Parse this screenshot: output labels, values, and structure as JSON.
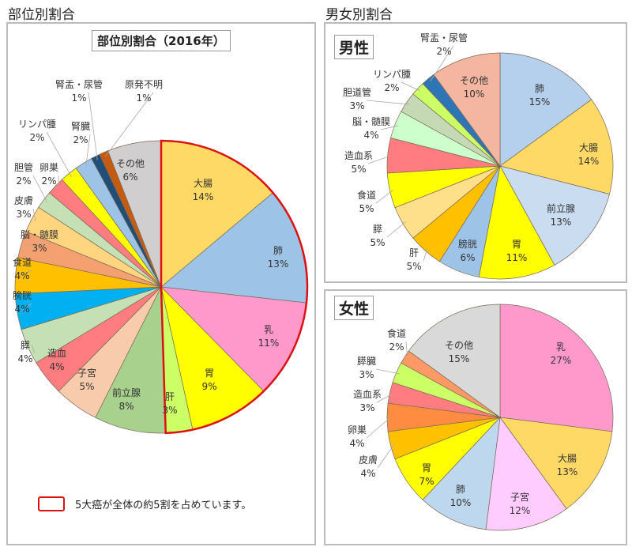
{
  "section_titles": {
    "left": "部位別割合",
    "right": "男女別割合"
  },
  "legend": {
    "text": "5大癌が全体の約5割を占めています。",
    "highlight_color": "#dd1111"
  },
  "chart_data": [
    {
      "type": "pie",
      "title": "部位別割合（2016年）",
      "start": "12 o'clock, clockwise",
      "highlighted_group": [
        "大腸",
        "肺",
        "乳",
        "胃",
        "肝"
      ],
      "slices": [
        {
          "label": "大腸",
          "value": 14,
          "color": "#FFD966"
        },
        {
          "label": "肺",
          "value": 13,
          "color": "#9DC3E6"
        },
        {
          "label": "乳",
          "value": 11,
          "color": "#FF99CC"
        },
        {
          "label": "胃",
          "value": 9,
          "color": "#FFFF00"
        },
        {
          "label": "肝",
          "value": 3,
          "color": "#CCFF66"
        },
        {
          "label": "前立腺",
          "value": 8,
          "color": "#A9D18E"
        },
        {
          "label": "子宮",
          "value": 5,
          "color": "#F8CBAD"
        },
        {
          "label": "造血",
          "value": 4,
          "color": "#FF7C80"
        },
        {
          "label": "膵",
          "value": 4,
          "color": "#C5E0B4"
        },
        {
          "label": "膀胱",
          "value": 4,
          "color": "#00B0F0"
        },
        {
          "label": "食道",
          "value": 4,
          "color": "#FFC000"
        },
        {
          "label": "脳・髄膜",
          "value": 3,
          "color": "#F4A070"
        },
        {
          "label": "皮膚",
          "value": 3,
          "color": "#FFD580"
        },
        {
          "label": "胆管",
          "value": 2,
          "color": "#C5E0B4"
        },
        {
          "label": "卵巣",
          "value": 2,
          "color": "#FF7C80"
        },
        {
          "label": "リンパ腫",
          "value": 2,
          "color": "#FFFF00"
        },
        {
          "label": "腎臓",
          "value": 2,
          "color": "#9DC3E6"
        },
        {
          "label": "腎盂・尿管",
          "value": 1,
          "color": "#1F4E79"
        },
        {
          "label": "原発不明",
          "value": 1,
          "color": "#C55A11"
        },
        {
          "label": "その他",
          "value": 6,
          "color": "#D0CECE"
        }
      ]
    },
    {
      "type": "pie",
      "title": "男性",
      "slices": [
        {
          "label": "肺",
          "value": 15,
          "color": "#B4D0EC"
        },
        {
          "label": "大腸",
          "value": 14,
          "color": "#FFD966"
        },
        {
          "label": "前立腺",
          "value": 13,
          "color": "#C9DCF0"
        },
        {
          "label": "胃",
          "value": 11,
          "color": "#FFFF00"
        },
        {
          "label": "膀胱",
          "value": 6,
          "color": "#9DC3E6"
        },
        {
          "label": "肝",
          "value": 5,
          "color": "#FFC000"
        },
        {
          "label": "膵",
          "value": 5,
          "color": "#FFE08A"
        },
        {
          "label": "食道",
          "value": 5,
          "color": "#FFFF00"
        },
        {
          "label": "造血系",
          "value": 5,
          "color": "#FF7C80"
        },
        {
          "label": "脳・髄膜",
          "value": 4,
          "color": "#CCFFCC"
        },
        {
          "label": "胆道管",
          "value": 3,
          "color": "#C5D9B4"
        },
        {
          "label": "リンパ腫",
          "value": 2,
          "color": "#CCFF66"
        },
        {
          "label": "腎盂・尿管",
          "value": 2,
          "color": "#2E75B6"
        },
        {
          "label": "その他",
          "value": 10,
          "color": "#F4B6A0"
        }
      ]
    },
    {
      "type": "pie",
      "title": "女性",
      "slices": [
        {
          "label": "乳",
          "value": 27,
          "color": "#FF99CC"
        },
        {
          "label": "大腸",
          "value": 13,
          "color": "#FFD966"
        },
        {
          "label": "子宮",
          "value": 12,
          "color": "#FFCCFF"
        },
        {
          "label": "肺",
          "value": 10,
          "color": "#BDD7EE"
        },
        {
          "label": "胃",
          "value": 7,
          "color": "#FFFF00"
        },
        {
          "label": "皮膚",
          "value": 4,
          "color": "#FFC000"
        },
        {
          "label": "卵巣",
          "value": 4,
          "color": "#FF8C40"
        },
        {
          "label": "造血系",
          "value": 3,
          "color": "#FF7C80"
        },
        {
          "label": "膵臓",
          "value": 3,
          "color": "#CCFF66"
        },
        {
          "label": "食道",
          "value": 2,
          "color": "#FF9966"
        },
        {
          "label": "その他",
          "value": 15,
          "color": "#D9D9D9"
        }
      ]
    }
  ]
}
